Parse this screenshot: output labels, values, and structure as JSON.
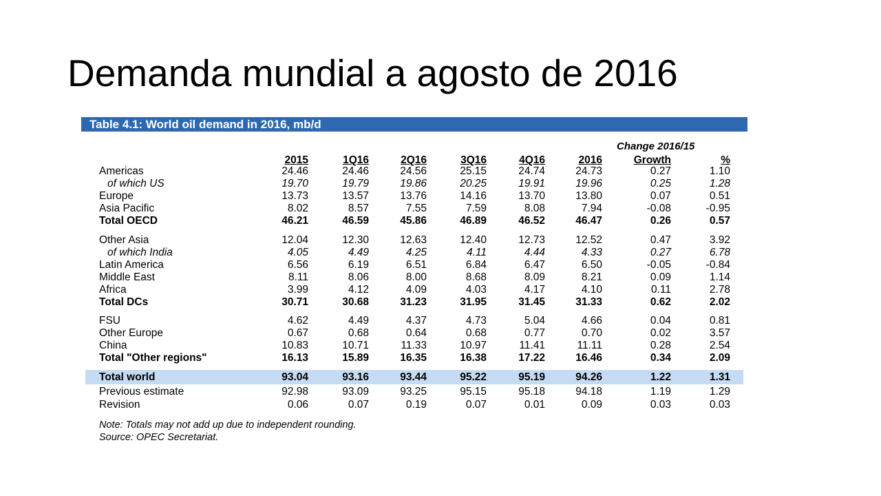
{
  "slide": {
    "title": "Demanda mundial a agosto de 2016"
  },
  "table": {
    "caption": "Table 4.1: World oil demand in 2016, mb/d",
    "change_header": "Change 2016/15",
    "columns": [
      "2015",
      "1Q16",
      "2Q16",
      "3Q16",
      "4Q16",
      "2016",
      "Growth",
      "%"
    ],
    "rows": [
      {
        "label": "Americas",
        "style": "normal",
        "values": [
          "24.46",
          "24.46",
          "24.56",
          "25.15",
          "24.74",
          "24.73",
          "0.27",
          "1.10"
        ]
      },
      {
        "label": "of which US",
        "style": "italic",
        "values": [
          "19.70",
          "19.79",
          "19.86",
          "20.25",
          "19.91",
          "19.96",
          "0.25",
          "1.28"
        ]
      },
      {
        "label": "Europe",
        "style": "normal",
        "values": [
          "13.73",
          "13.57",
          "13.76",
          "14.16",
          "13.70",
          "13.80",
          "0.07",
          "0.51"
        ]
      },
      {
        "label": "Asia Pacific",
        "style": "normal",
        "values": [
          "8.02",
          "8.57",
          "7.55",
          "7.59",
          "8.08",
          "7.94",
          "-0.08",
          "-0.95"
        ]
      },
      {
        "label": "Total OECD",
        "style": "bold",
        "values": [
          "46.21",
          "46.59",
          "45.86",
          "46.89",
          "46.52",
          "46.47",
          "0.26",
          "0.57"
        ]
      },
      {
        "label": "Other Asia",
        "style": "normal",
        "values": [
          "12.04",
          "12.30",
          "12.63",
          "12.40",
          "12.73",
          "12.52",
          "0.47",
          "3.92"
        ]
      },
      {
        "label": "of which India",
        "style": "italic",
        "values": [
          "4.05",
          "4.49",
          "4.25",
          "4.11",
          "4.44",
          "4.33",
          "0.27",
          "6.78"
        ]
      },
      {
        "label": "Latin America",
        "style": "normal",
        "values": [
          "6.56",
          "6.19",
          "6.51",
          "6.84",
          "6.47",
          "6.50",
          "-0.05",
          "-0.84"
        ]
      },
      {
        "label": "Middle East",
        "style": "normal",
        "values": [
          "8.11",
          "8.06",
          "8.00",
          "8.68",
          "8.09",
          "8.21",
          "0.09",
          "1.14"
        ]
      },
      {
        "label": "Africa",
        "style": "normal",
        "values": [
          "3.99",
          "4.12",
          "4.09",
          "4.03",
          "4.17",
          "4.10",
          "0.11",
          "2.78"
        ]
      },
      {
        "label": "Total DCs",
        "style": "bold",
        "values": [
          "30.71",
          "30.68",
          "31.23",
          "31.95",
          "31.45",
          "31.33",
          "0.62",
          "2.02"
        ]
      },
      {
        "label": "FSU",
        "style": "normal",
        "values": [
          "4.62",
          "4.49",
          "4.37",
          "4.73",
          "5.04",
          "4.66",
          "0.04",
          "0.81"
        ]
      },
      {
        "label": "Other Europe",
        "style": "normal",
        "values": [
          "0.67",
          "0.68",
          "0.64",
          "0.68",
          "0.77",
          "0.70",
          "0.02",
          "3.57"
        ]
      },
      {
        "label": "China",
        "style": "normal",
        "values": [
          "10.83",
          "10.71",
          "11.33",
          "10.97",
          "11.41",
          "11.11",
          "0.28",
          "2.54"
        ]
      },
      {
        "label": "Total \"Other regions\"",
        "style": "bold",
        "values": [
          "16.13",
          "15.89",
          "16.35",
          "16.38",
          "17.22",
          "16.46",
          "0.34",
          "2.09"
        ]
      },
      {
        "label": "Total world",
        "style": "highlight",
        "values": [
          "93.04",
          "93.16",
          "93.44",
          "95.22",
          "95.19",
          "94.26",
          "1.22",
          "1.31"
        ]
      },
      {
        "label": "Previous estimate",
        "style": "normal",
        "values": [
          "92.98",
          "93.09",
          "93.25",
          "95.15",
          "95.18",
          "94.18",
          "1.19",
          "1.29"
        ]
      },
      {
        "label": "Revision",
        "style": "normal",
        "values": [
          "0.06",
          "0.07",
          "0.19",
          "0.07",
          "0.01",
          "0.09",
          "0.03",
          "0.03"
        ]
      }
    ],
    "notes": [
      "Note: Totals may not add up due to independent rounding.",
      "Source: OPEC Secretariat."
    ]
  },
  "colors": {
    "header_bar": "#2e68b1",
    "highlight_row": "#c5dbf3"
  }
}
